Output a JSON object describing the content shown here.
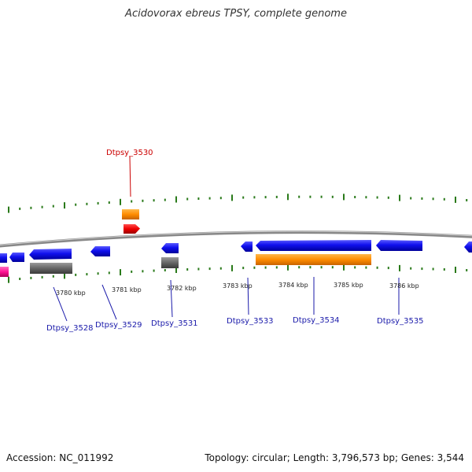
{
  "title": "Acidovorax ebreus TPSY, complete genome",
  "footer": {
    "accession": "Accession: NC_011992",
    "topology": "Topology: circular; Length: 3,796,573 bp; Genes: 3,544"
  },
  "colors": {
    "plus_strand_gene": "#1010ee",
    "gene_feature": "#ff8c00",
    "pseudo_gene": "#666666",
    "rna_gene": "#ee0000",
    "other_feature": "#ff1493",
    "tick": "#2a7a1a",
    "backbone": "#888888",
    "highlight_label": "#cc0000",
    "label": "#1a1aaa"
  },
  "kbp_ticks": [
    "3780 kbp",
    "3781 kbp",
    "3782 kbp",
    "3783 kbp",
    "3784 kbp",
    "3785 kbp",
    "3786 kbp"
  ],
  "genes": [
    {
      "label": "Dtpsy_3528",
      "highlight": false
    },
    {
      "label": "Dtpsy_3529",
      "highlight": false
    },
    {
      "label": "Dtpsy_3530",
      "highlight": true
    },
    {
      "label": "Dtpsy_3531",
      "highlight": false
    },
    {
      "label": "Dtpsy_3533",
      "highlight": false
    },
    {
      "label": "Dtpsy_3534",
      "highlight": false
    },
    {
      "label": "Dtpsy_3535",
      "highlight": false
    }
  ]
}
